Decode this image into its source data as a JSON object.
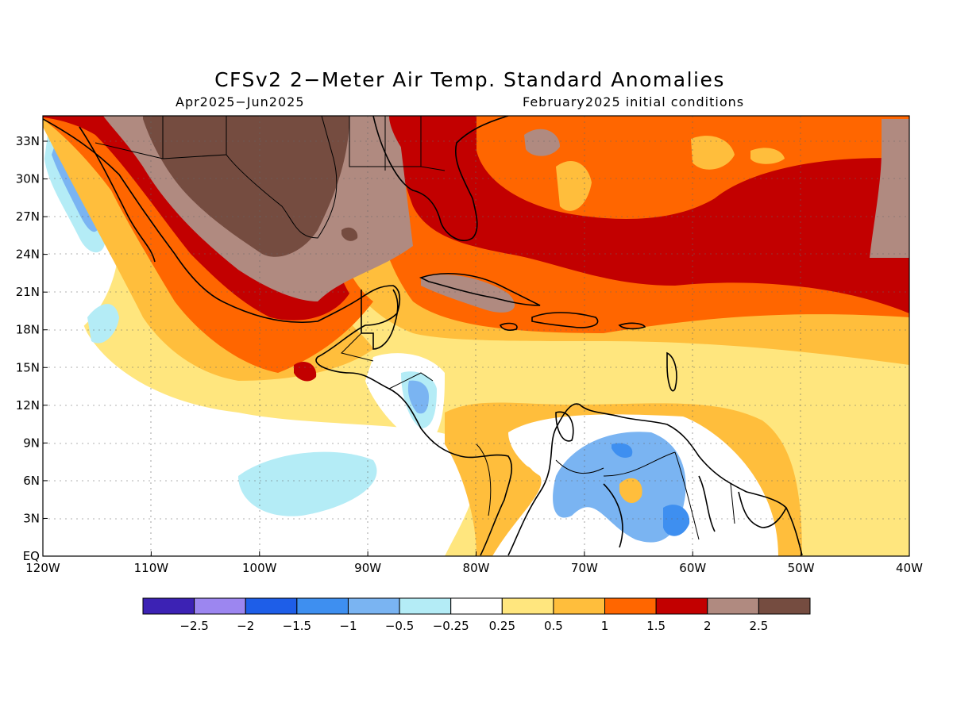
{
  "title": "CFSv2 2−Meter Air Temp. Standard Anomalies",
  "period": "Apr2025−Jun2025",
  "init": "February2025 initial conditions",
  "lat_labels": [
    "EQ",
    "3N",
    "6N",
    "9N",
    "12N",
    "15N",
    "18N",
    "21N",
    "24N",
    "27N",
    "30N",
    "33N"
  ],
  "lon_labels": [
    "120W",
    "110W",
    "100W",
    "90W",
    "80W",
    "70W",
    "60W",
    "50W",
    "40W"
  ],
  "colorbar": {
    "colors": [
      "#3c22b4",
      "#9c86f0",
      "#1e5ee8",
      "#3e8ff0",
      "#7ab4f2",
      "#b4ecf6",
      "#ffffff",
      "#ffe67e",
      "#ffbe3c",
      "#ff6600",
      "#c20000",
      "#b08a80",
      "#754c40"
    ],
    "labels": [
      "−2.5",
      "−2",
      "−1.5",
      "−1",
      "−0.5",
      "−0.25",
      "0.25",
      "0.5",
      "1",
      "1.5",
      "2",
      "2.5"
    ]
  }
}
